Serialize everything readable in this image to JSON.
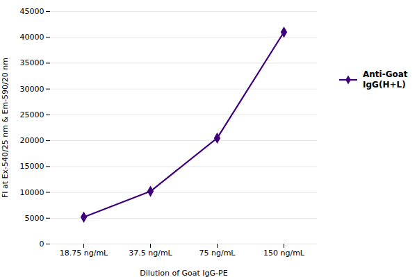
{
  "chart_data": {
    "type": "line",
    "xlabel": "Dilution of Goat IgG-PE",
    "ylabel": "FI at Ex-540/25 nm & Em-590/20 nm",
    "categories": [
      "18.75 ng/mL",
      "37.5 ng/mL",
      "75 ng/mL",
      "150 ng/mL"
    ],
    "series": [
      {
        "name": "Anti-Goat\nIgG(H+L)",
        "color": "#3D007A",
        "marker": "diamond",
        "values": [
          5200,
          10200,
          20500,
          41000
        ]
      }
    ],
    "ylim": [
      0,
      45000
    ],
    "yticks": [
      0,
      5000,
      10000,
      15000,
      20000,
      25000,
      30000,
      35000,
      40000,
      45000
    ],
    "grid": true,
    "legend": "right"
  }
}
